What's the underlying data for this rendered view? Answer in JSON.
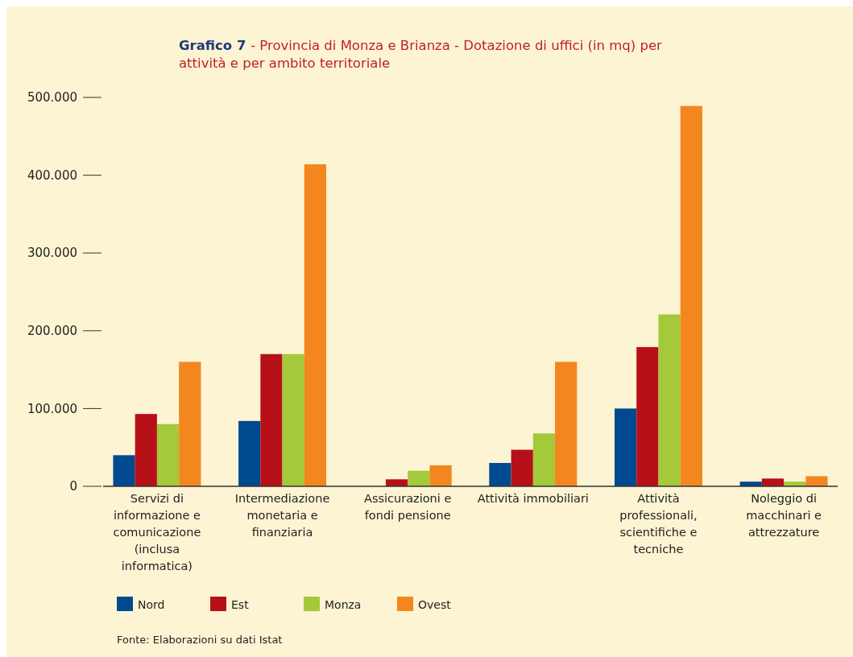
{
  "chart_data": {
    "type": "bar",
    "title": "Grafico 7 - Provincia di Monza e Brianza - Dotazione di uffici (in mq) per attività e per ambito territoriale",
    "categories": [
      "Servizi di informazione e comunicazione (inclusa informatica)",
      "Intermediazione monetaria e finanziaria",
      "Assicurazioni e fondi pensione",
      "Attività immobiliari",
      "Attività professionali, scientifiche e tecniche",
      "Noleggio di macchinari e attrezzature"
    ],
    "series": [
      {
        "name": "Nord",
        "color": "#004a8f",
        "values": [
          40000,
          84000,
          0,
          30000,
          100000,
          6000
        ]
      },
      {
        "name": "Est",
        "color": "#b81019",
        "values": [
          93000,
          170000,
          9000,
          47000,
          179000,
          10000
        ]
      },
      {
        "name": "Monza",
        "color": "#a4c93a",
        "values": [
          80000,
          170000,
          20000,
          68000,
          221000,
          6000
        ]
      },
      {
        "name": "Ovest",
        "color": "#f48620",
        "values": [
          160000,
          414000,
          27000,
          160000,
          489000,
          13000
        ]
      }
    ],
    "ylim": [
      0,
      500000
    ],
    "yticks": [
      {
        "value": 0,
        "label": "0"
      },
      {
        "value": 100000,
        "label": "100.000"
      },
      {
        "value": 200000,
        "label": "200.000"
      },
      {
        "value": 300000,
        "label": "300.000"
      },
      {
        "value": 400000,
        "label": "400.000"
      },
      {
        "value": 500000,
        "label": "500.000"
      }
    ],
    "grid": false,
    "legend": "bottom",
    "annotations": [
      "Fonte: Elaborazioni su dati Istat"
    ]
  }
}
